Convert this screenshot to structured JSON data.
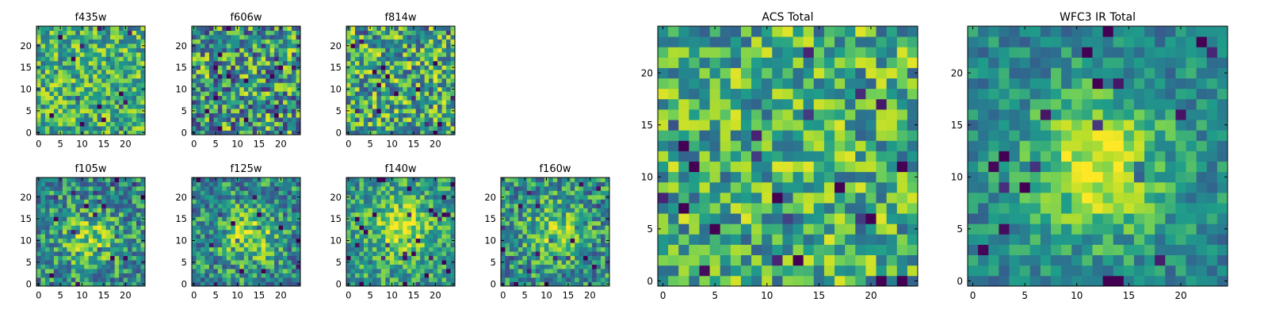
{
  "figure": {
    "colormap": "viridis",
    "palette": [
      "#440154",
      "#482777",
      "#3f4a8a",
      "#31678e",
      "#26838f",
      "#1f9d8a",
      "#6cce5a",
      "#b6de2b",
      "#fee825"
    ],
    "axis_color": "#000000"
  },
  "chart_data": [
    {
      "type": "heatmap",
      "title": "f435w",
      "grid": "24x24",
      "xlim": [
        0,
        24
      ],
      "ylim": [
        0,
        24
      ],
      "xticks": [
        0,
        5,
        10,
        15,
        20
      ],
      "yticks": [
        0,
        5,
        10,
        15,
        20
      ],
      "pattern": "uniform noise, mostly green-yellow with a few dark pixels",
      "noise": 0.55,
      "base": 0.66,
      "blob": 0.0,
      "blob_center": [
        12,
        12
      ],
      "seed": 11
    },
    {
      "type": "heatmap",
      "title": "f606w",
      "grid": "24x24",
      "xlim": [
        0,
        24
      ],
      "ylim": [
        0,
        24
      ],
      "xticks": [
        0,
        5,
        10,
        15,
        20
      ],
      "yticks": [
        0,
        5,
        10,
        15,
        20
      ],
      "pattern": "uniform noise, many dark blue pixels",
      "noise": 0.8,
      "base": 0.55,
      "blob": 0.0,
      "blob_center": [
        12,
        12
      ],
      "seed": 23
    },
    {
      "type": "heatmap",
      "title": "f814w",
      "grid": "24x24",
      "xlim": [
        0,
        24
      ],
      "ylim": [
        0,
        24
      ],
      "xticks": [
        0,
        5,
        10,
        15,
        20
      ],
      "yticks": [
        0,
        5,
        10,
        15,
        20
      ],
      "pattern": "uniform noise",
      "noise": 0.7,
      "base": 0.62,
      "blob": 0.0,
      "blob_center": [
        12,
        12
      ],
      "seed": 37
    },
    {
      "type": "heatmap",
      "title": "f105w",
      "grid": "24x24",
      "xlim": [
        0,
        24
      ],
      "ylim": [
        0,
        24
      ],
      "xticks": [
        0,
        5,
        10,
        15,
        20
      ],
      "yticks": [
        0,
        5,
        10,
        15,
        20
      ],
      "pattern": "noise with faint central source and bright lower-right",
      "noise": 0.55,
      "base": 0.5,
      "blob": 0.3,
      "blob_center": [
        12,
        10
      ],
      "seed": 41
    },
    {
      "type": "heatmap",
      "title": "f125w",
      "grid": "24x24",
      "xlim": [
        0,
        24
      ],
      "ylim": [
        0,
        24
      ],
      "xticks": [
        0,
        5,
        10,
        15,
        20
      ],
      "yticks": [
        0,
        5,
        10,
        15,
        20
      ],
      "pattern": "noise with central source near (13,11)",
      "noise": 0.55,
      "base": 0.5,
      "blob": 0.35,
      "blob_center": [
        13,
        11
      ],
      "seed": 53
    },
    {
      "type": "heatmap",
      "title": "f140w",
      "grid": "24x24",
      "xlim": [
        0,
        24
      ],
      "ylim": [
        0,
        24
      ],
      "xticks": [
        0,
        5,
        10,
        15,
        20
      ],
      "yticks": [
        0,
        5,
        10,
        15,
        20
      ],
      "pattern": "bright extended central source",
      "noise": 0.45,
      "base": 0.58,
      "blob": 0.35,
      "blob_center": [
        12,
        13
      ],
      "seed": 67
    },
    {
      "type": "heatmap",
      "title": "f160w",
      "grid": "24x24",
      "xlim": [
        0,
        24
      ],
      "ylim": [
        0,
        24
      ],
      "xticks": [
        0,
        5,
        10,
        15,
        20
      ],
      "yticks": [
        0,
        5,
        10,
        15,
        20
      ],
      "pattern": "noise with dark lower-left and bright lower-right",
      "noise": 0.55,
      "base": 0.52,
      "blob": 0.3,
      "blob_center": [
        12,
        12
      ],
      "seed": 79
    },
    {
      "type": "heatmap",
      "title": "ACS Total",
      "grid": "24x24",
      "xlim": [
        0,
        24
      ],
      "ylim": [
        0,
        24
      ],
      "xticks": [
        0,
        5,
        10,
        15,
        20
      ],
      "yticks": [
        0,
        5,
        10,
        15,
        20
      ],
      "pattern": "uniform noise, green-yellow with scattered dark pixels",
      "noise": 0.6,
      "base": 0.65,
      "blob": 0.0,
      "blob_center": [
        12,
        12
      ],
      "seed": 83
    },
    {
      "type": "heatmap",
      "title": "WFC3 IR Total",
      "grid": "24x24",
      "xlim": [
        0,
        24
      ],
      "ylim": [
        0,
        24
      ],
      "xticks": [
        0,
        5,
        10,
        15,
        20
      ],
      "yticks": [
        0,
        5,
        10,
        15,
        20
      ],
      "pattern": "bright central source near (12,11), dark pixels upper-left",
      "noise": 0.35,
      "base": 0.5,
      "blob": 0.45,
      "blob_center": [
        12,
        11
      ],
      "seed": 97
    }
  ]
}
